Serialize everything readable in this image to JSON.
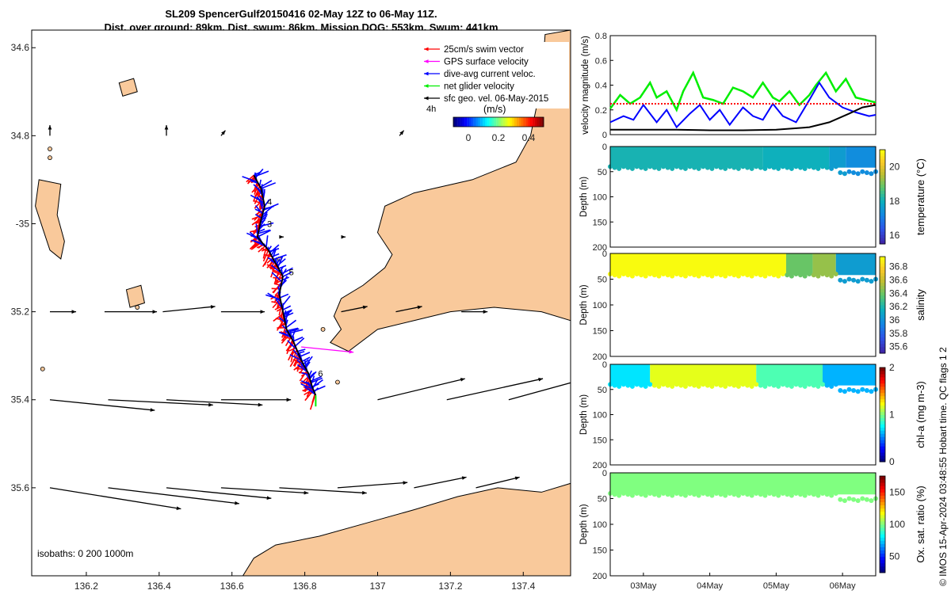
{
  "title_line1": "SL209 SpencerGulf20150416 02-May 12Z to 06-May 11Z.",
  "title_line2": "Dist. over ground: 89km. Dist. swum: 86km. Mission DOG: 553km. Swum: 441km",
  "credit": "© IMOS 15-Apr-2024 03:48:55 Hobart time. QC flags 1  2",
  "colors": {
    "land": "#f9c99b",
    "swim": "#ff0000",
    "gps": "#ff00ff",
    "current": "#0000ff",
    "net": "#00ee00",
    "geo": "#000000"
  },
  "chart_data": [
    {
      "type": "map",
      "name": "track-map",
      "xlim": [
        136.05,
        137.53
      ],
      "ylim": [
        -35.8,
        -34.56
      ],
      "xticks": [
        136.2,
        136.4,
        136.6,
        136.8,
        137,
        137.2,
        137.4
      ],
      "yticks": [
        -34.6,
        -34.8,
        -35,
        -35.2,
        -35.4,
        -35.6
      ],
      "ytick_labels": [
        "34.6",
        "34.8",
        "-35",
        "35.2",
        "35.4",
        "35.6"
      ],
      "legend": [
        {
          "label": "25cm/s swim vector",
          "color": "#ff0000"
        },
        {
          "label": "GPS surface velocity",
          "color": "#ff00ff"
        },
        {
          "label": "dive-avg current veloc.",
          "color": "#0000ff"
        },
        {
          "label": "net glider velocity",
          "color": "#00ee00"
        },
        {
          "label": "sfc geo. vel. 06-May-2015",
          "color": "#000000"
        }
      ],
      "legend_position": "top-right",
      "colorbar": {
        "label": "(m/s)",
        "ticks": [
          "0",
          "0.2",
          "0.4"
        ],
        "range": [
          -0.1,
          0.5
        ],
        "note": "4h"
      },
      "isobaths_label": "isobaths: 0   200   1000m",
      "track": [
        [
          136.66,
          -34.89
        ],
        [
          136.68,
          -34.92
        ],
        [
          136.69,
          -34.96
        ],
        [
          136.68,
          -34.99
        ],
        [
          136.67,
          -35.03
        ],
        [
          136.7,
          -35.06
        ],
        [
          136.72,
          -35.09
        ],
        [
          136.74,
          -35.12
        ],
        [
          136.73,
          -35.16
        ],
        [
          136.74,
          -35.2
        ],
        [
          136.75,
          -35.24
        ],
        [
          136.77,
          -35.27
        ],
        [
          136.79,
          -35.31
        ],
        [
          136.81,
          -35.34
        ],
        [
          136.82,
          -35.37
        ],
        [
          136.83,
          -35.39
        ]
      ],
      "day_markers": [
        {
          "label": "4",
          "lon": 136.69,
          "lat": -34.95
        },
        {
          "label": "3",
          "lon": 136.69,
          "lat": -35.0
        },
        {
          "label": "5",
          "lon": 136.75,
          "lat": -35.11
        },
        {
          "label": "6",
          "lon": 136.83,
          "lat": -35.34
        }
      ],
      "geo_arrows": [
        {
          "lon": 136.1,
          "lat": -35.2,
          "u": 0.03,
          "v": 0.0
        },
        {
          "lon": 136.25,
          "lat": -35.2,
          "u": 0.06,
          "v": 0.0
        },
        {
          "lon": 136.41,
          "lat": -35.2,
          "u": 0.06,
          "v": 0.005
        },
        {
          "lon": 136.57,
          "lat": -35.2,
          "u": 0.05,
          "v": 0.0
        },
        {
          "lon": 136.9,
          "lat": -35.2,
          "u": 0.03,
          "v": 0.005
        },
        {
          "lon": 137.05,
          "lat": -35.2,
          "u": 0.03,
          "v": 0.005
        },
        {
          "lon": 137.23,
          "lat": -35.2,
          "u": 0.03,
          "v": 0.0
        },
        {
          "lon": 136.1,
          "lat": -35.4,
          "u": 0.12,
          "v": -0.01
        },
        {
          "lon": 136.26,
          "lat": -35.4,
          "u": 0.12,
          "v": -0.005
        },
        {
          "lon": 136.42,
          "lat": -35.4,
          "u": 0.11,
          "v": -0.005
        },
        {
          "lon": 136.57,
          "lat": -35.4,
          "u": 0.08,
          "v": 0.0
        },
        {
          "lon": 137.0,
          "lat": -35.4,
          "u": 0.1,
          "v": 0.02
        },
        {
          "lon": 137.19,
          "lat": -35.4,
          "u": 0.11,
          "v": 0.02
        },
        {
          "lon": 137.36,
          "lat": -35.4,
          "u": 0.11,
          "v": 0.025
        },
        {
          "lon": 136.1,
          "lat": -35.6,
          "u": 0.15,
          "v": -0.02
        },
        {
          "lon": 136.26,
          "lat": -35.6,
          "u": 0.15,
          "v": -0.015
        },
        {
          "lon": 136.42,
          "lat": -35.6,
          "u": 0.12,
          "v": -0.01
        },
        {
          "lon": 136.57,
          "lat": -35.6,
          "u": 0.1,
          "v": -0.005
        },
        {
          "lon": 136.73,
          "lat": -35.6,
          "u": 0.1,
          "v": -0.005
        },
        {
          "lon": 136.89,
          "lat": -35.6,
          "u": 0.08,
          "v": 0.005
        },
        {
          "lon": 137.1,
          "lat": -35.6,
          "u": 0.06,
          "v": 0.01
        },
        {
          "lon": 137.27,
          "lat": -35.6,
          "u": 0.05,
          "v": 0.01
        },
        {
          "lon": 136.1,
          "lat": -34.8,
          "u": 0.0,
          "v": 0.01
        },
        {
          "lon": 136.42,
          "lat": -34.8,
          "u": 0.0,
          "v": 0.01
        },
        {
          "lon": 136.57,
          "lat": -34.8,
          "u": 0.005,
          "v": 0.005
        },
        {
          "lon": 137.06,
          "lat": -34.8,
          "u": 0.005,
          "v": 0.005
        },
        {
          "lon": 136.73,
          "lat": -35.03,
          "u": 0.005,
          "v": 0.0
        },
        {
          "lon": 136.9,
          "lat": -35.03,
          "u": 0.005,
          "v": 0.0
        }
      ],
      "gps_arrow": {
        "lon": 136.79,
        "lat": -35.28,
        "u": 0.06,
        "v": -0.005
      },
      "land": [
        {
          "name": "eyre-peninsula-tip",
          "points": [
            [
              136.07,
              -34.9
            ],
            [
              136.13,
              -34.91
            ],
            [
              136.12,
              -34.98
            ],
            [
              136.14,
              -35.04
            ],
            [
              136.13,
              -35.08
            ],
            [
              136.1,
              -35.06
            ],
            [
              136.08,
              -35.01
            ],
            [
              136.06,
              -34.96
            ]
          ]
        },
        {
          "name": "yorke-peninsula",
          "points": [
            [
              137.53,
              -34.56
            ],
            [
              137.46,
              -34.57
            ],
            [
              137.45,
              -34.68
            ],
            [
              137.42,
              -34.8
            ],
            [
              137.38,
              -34.86
            ],
            [
              137.26,
              -34.9
            ],
            [
              137.1,
              -34.93
            ],
            [
              137.02,
              -34.96
            ],
            [
              137.0,
              -35.02
            ],
            [
              137.04,
              -35.07
            ],
            [
              137.02,
              -35.1
            ],
            [
              136.96,
              -35.14
            ],
            [
              136.9,
              -35.17
            ],
            [
              136.88,
              -35.21
            ],
            [
              136.9,
              -35.24
            ],
            [
              136.87,
              -35.27
            ],
            [
              136.92,
              -35.29
            ],
            [
              137.0,
              -35.24
            ],
            [
              137.1,
              -35.22
            ],
            [
              137.2,
              -35.2
            ],
            [
              137.32,
              -35.19
            ],
            [
              137.45,
              -35.2
            ],
            [
              137.53,
              -35.22
            ]
          ]
        },
        {
          "name": "kangaroo-island",
          "points": [
            [
              136.05,
              -35.8
            ],
            [
              136.05,
              -35.8
            ],
            [
              136.63,
              -35.8
            ],
            [
              136.66,
              -35.76
            ],
            [
              136.72,
              -35.73
            ],
            [
              136.84,
              -35.71
            ],
            [
              136.97,
              -35.68
            ],
            [
              137.1,
              -35.65
            ],
            [
              137.22,
              -35.62
            ],
            [
              137.33,
              -35.6
            ],
            [
              137.45,
              -35.61
            ],
            [
              137.53,
              -35.59
            ],
            [
              137.53,
              -35.8
            ]
          ]
        },
        {
          "name": "wardang-island",
          "points": [
            [
              136.31,
              -35.15
            ],
            [
              136.35,
              -35.14
            ],
            [
              136.36,
              -35.18
            ],
            [
              136.32,
              -35.19
            ]
          ]
        },
        {
          "name": "islet-a",
          "points": [
            [
              136.29,
              -34.68
            ],
            [
              136.33,
              -34.67
            ],
            [
              136.34,
              -34.7
            ],
            [
              136.3,
              -34.71
            ]
          ]
        }
      ]
    },
    {
      "type": "line",
      "name": "velocity-panel",
      "ylabel": "velocity magnitude (m/s)",
      "ylim": [
        0,
        0.8
      ],
      "yticks": [
        "0",
        "0.2",
        "0.4",
        "0.6",
        "0.8"
      ],
      "x_range_days": [
        0,
        4
      ],
      "series": [
        {
          "name": "net glider velocity",
          "color": "#00ee00",
          "x": [
            0,
            0.15,
            0.3,
            0.45,
            0.6,
            0.7,
            0.85,
            1.0,
            1.1,
            1.25,
            1.4,
            1.55,
            1.7,
            1.85,
            2.0,
            2.15,
            2.3,
            2.45,
            2.55,
            2.7,
            2.85,
            3.0,
            3.1,
            3.25,
            3.4,
            3.55,
            3.7,
            3.85,
            4.0
          ],
          "y": [
            0.21,
            0.32,
            0.25,
            0.3,
            0.42,
            0.3,
            0.35,
            0.2,
            0.35,
            0.5,
            0.3,
            0.28,
            0.25,
            0.38,
            0.35,
            0.3,
            0.42,
            0.3,
            0.27,
            0.35,
            0.24,
            0.32,
            0.4,
            0.5,
            0.35,
            0.45,
            0.3,
            0.28,
            0.26
          ]
        },
        {
          "name": "dive-avg current veloc.",
          "color": "#0000ff",
          "x": [
            0,
            0.2,
            0.35,
            0.5,
            0.7,
            0.85,
            1.0,
            1.2,
            1.35,
            1.5,
            1.65,
            1.8,
            2.0,
            2.15,
            2.3,
            2.45,
            2.6,
            2.8,
            3.0,
            3.15,
            3.3,
            3.5,
            3.7,
            3.9,
            4.0
          ],
          "y": [
            0.1,
            0.15,
            0.12,
            0.24,
            0.1,
            0.2,
            0.06,
            0.17,
            0.24,
            0.12,
            0.2,
            0.08,
            0.22,
            0.15,
            0.12,
            0.25,
            0.15,
            0.1,
            0.28,
            0.42,
            0.3,
            0.22,
            0.18,
            0.15,
            0.16
          ]
        },
        {
          "name": "swim speed 25cm/s",
          "color": "#ff0000",
          "x": [
            0,
            4
          ],
          "y": [
            0.25,
            0.25
          ]
        },
        {
          "name": "surface geostrophic",
          "color": "#000000",
          "x": [
            0,
            0.5,
            1.0,
            1.5,
            2.0,
            2.5,
            3.0,
            3.3,
            3.6,
            3.8,
            4.0
          ],
          "y": [
            0.04,
            0.04,
            0.04,
            0.035,
            0.035,
            0.04,
            0.06,
            0.1,
            0.17,
            0.22,
            0.24
          ]
        }
      ]
    },
    {
      "type": "heatmap",
      "name": "temperature-section",
      "ylabel": "Depth (m)",
      "colorbar_label": "temperature (°C)",
      "colorbar_ticks": [
        "16",
        "18",
        "20"
      ],
      "clim": [
        15.5,
        21
      ],
      "ylim": [
        0,
        200
      ],
      "yticks": [
        "0",
        "50",
        "100",
        "150",
        "200"
      ],
      "bottom_depth_profile": [
        40,
        42,
        38,
        45,
        40,
        43,
        40,
        38,
        42,
        46,
        48,
        50,
        52
      ],
      "segments": [
        {
          "from": 0.0,
          "to": 2.3,
          "value": 18.1
        },
        {
          "from": 2.3,
          "to": 3.3,
          "value": 18.0
        },
        {
          "from": 3.3,
          "to": 3.55,
          "value": 17.6
        },
        {
          "from": 3.55,
          "to": 4.0,
          "value": 17.3
        }
      ]
    },
    {
      "type": "heatmap",
      "name": "salinity-section",
      "ylabel": "Depth (m)",
      "colorbar_label": "salinity",
      "colorbar_ticks": [
        "35.6",
        "35.8",
        "36",
        "36.2",
        "36.4",
        "36.6",
        "36.8"
      ],
      "clim": [
        35.5,
        36.95
      ],
      "ylim": [
        0,
        200
      ],
      "yticks": [
        "0",
        "50",
        "100",
        "150",
        "200"
      ],
      "segments": [
        {
          "from": 0.0,
          "to": 2.65,
          "value": 36.95
        },
        {
          "from": 2.65,
          "to": 3.05,
          "value": 36.4
        },
        {
          "from": 3.05,
          "to": 3.4,
          "value": 36.5
        },
        {
          "from": 3.4,
          "to": 4.0,
          "value": 36.05
        }
      ]
    },
    {
      "type": "heatmap",
      "name": "chlorophyll-section",
      "ylabel": "Depth (m)",
      "colorbar_label": "chl-a (mg m-3)",
      "colorbar_ticks": [
        "0",
        "1",
        "2"
      ],
      "clim": [
        0,
        2
      ],
      "ylim": [
        0,
        200
      ],
      "yticks": [
        "0",
        "50",
        "100",
        "150",
        "200"
      ],
      "segments": [
        {
          "from": 0.0,
          "to": 0.6,
          "value": 0.7
        },
        {
          "from": 0.6,
          "to": 2.2,
          "value": 1.2
        },
        {
          "from": 2.2,
          "to": 3.2,
          "value": 0.9
        },
        {
          "from": 3.2,
          "to": 4.0,
          "value": 0.6
        }
      ]
    },
    {
      "type": "heatmap",
      "name": "oxygen-section",
      "ylabel": "Depth (m)",
      "colorbar_label": "Ox. sat. ratio (%)",
      "colorbar_ticks": [
        "50",
        "100",
        "150"
      ],
      "clim": [
        25,
        175
      ],
      "ylim": [
        0,
        200
      ],
      "yticks": [
        "0",
        "50",
        "100",
        "150",
        "200"
      ],
      "xticks": [
        "03May",
        "04May",
        "05May",
        "06May"
      ],
      "segments": [
        {
          "from": 0.0,
          "to": 4.0,
          "value": 100
        }
      ]
    }
  ]
}
